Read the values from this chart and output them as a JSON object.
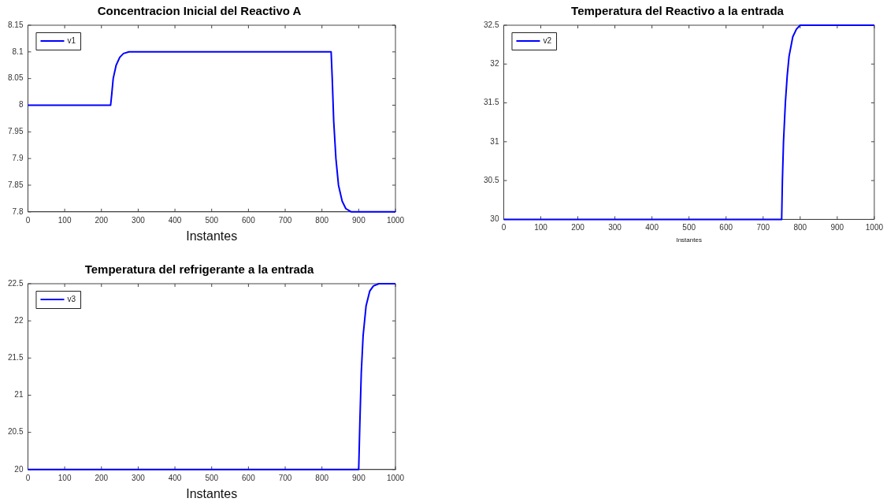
{
  "chart_data": [
    {
      "type": "line",
      "title": "Concentracion Inicial del Reactivo A",
      "xlabel": "Instantes",
      "x": [
        0,
        225,
        228,
        232,
        240,
        250,
        260,
        275,
        825,
        828,
        832,
        838,
        845,
        855,
        865,
        880,
        1000
      ],
      "series": [
        {
          "name": "v1",
          "color": "#0000ff",
          "values": [
            8,
            8,
            8.02,
            8.05,
            8.075,
            8.09,
            8.097,
            8.1,
            8.1,
            8.05,
            7.97,
            7.9,
            7.85,
            7.82,
            7.806,
            7.8,
            7.8
          ]
        }
      ],
      "xlim": [
        0,
        1000
      ],
      "xticks": [
        0,
        100,
        200,
        300,
        400,
        500,
        600,
        700,
        800,
        900,
        1000
      ],
      "ylim": [
        7.8,
        8.15
      ],
      "yticks": [
        7.8,
        7.85,
        7.9,
        7.95,
        8,
        8.05,
        8.1,
        8.15
      ],
      "grid": false,
      "legend": "top left",
      "marker": "none",
      "line_style": "solid"
    },
    {
      "type": "line",
      "title": "Temperatura del Reactivo a la entrada",
      "xlabel": "Instantes",
      "x": [
        0,
        750,
        752,
        755,
        760,
        765,
        770,
        780,
        790,
        800,
        1000
      ],
      "series": [
        {
          "name": "v2",
          "color": "#0000ff",
          "values": [
            30,
            30,
            30.5,
            31,
            31.5,
            31.85,
            32.1,
            32.35,
            32.45,
            32.5,
            32.5
          ]
        }
      ],
      "xlim": [
        0,
        1000
      ],
      "xticks": [
        0,
        100,
        200,
        300,
        400,
        500,
        600,
        700,
        800,
        900,
        1000
      ],
      "ylim": [
        30,
        32.5
      ],
      "yticks": [
        30,
        30.5,
        31,
        31.5,
        32,
        32.5
      ],
      "grid": false,
      "legend": "top left",
      "marker": "none",
      "line_style": "solid"
    },
    {
      "type": "line",
      "title": "Temperatura del refrigerante a la entrada",
      "xlabel": "Instantes",
      "x": [
        0,
        900,
        903,
        907,
        912,
        920,
        930,
        940,
        955,
        1000
      ],
      "series": [
        {
          "name": "v3",
          "color": "#0000ff",
          "values": [
            20,
            20,
            20.6,
            21.3,
            21.8,
            22.2,
            22.4,
            22.47,
            22.5,
            22.5
          ]
        }
      ],
      "xlim": [
        0,
        1000
      ],
      "xticks": [
        0,
        100,
        200,
        300,
        400,
        500,
        600,
        700,
        800,
        900,
        1000
      ],
      "ylim": [
        20,
        22.5
      ],
      "yticks": [
        20,
        20.5,
        21,
        21.5,
        22,
        22.5
      ],
      "grid": false,
      "legend": "top left",
      "marker": "none",
      "line_style": "solid"
    }
  ]
}
